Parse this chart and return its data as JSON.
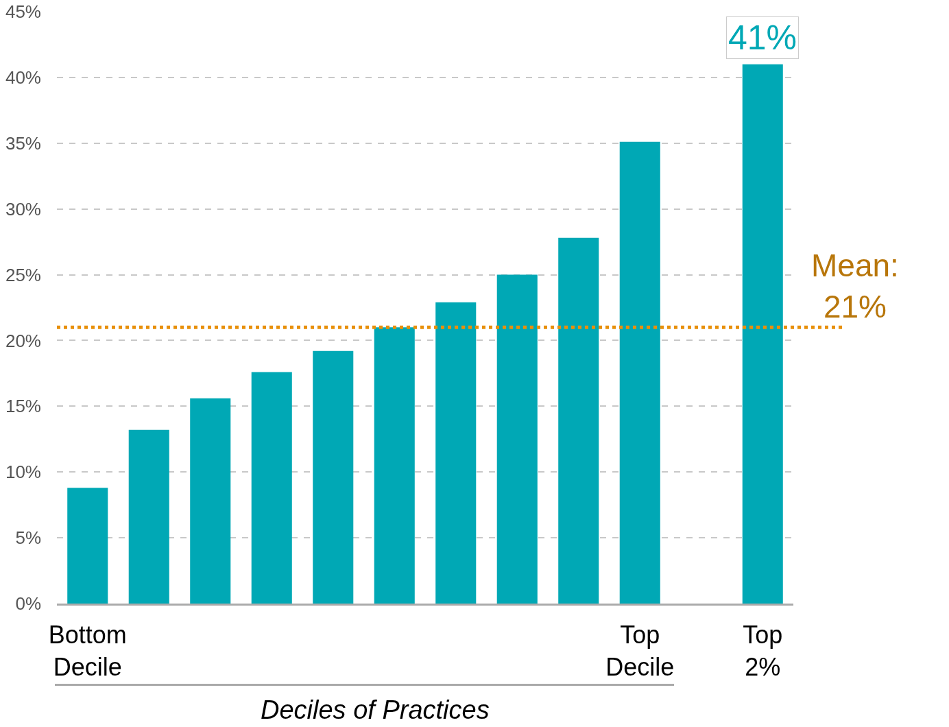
{
  "chart_data": {
    "type": "bar",
    "xlabel": "Deciles of Practices",
    "categories": [
      "Bottom Decile",
      null,
      null,
      null,
      null,
      null,
      null,
      null,
      null,
      "Top Decile",
      null,
      "Top 2%"
    ],
    "values": [
      8.8,
      13.2,
      15.6,
      17.6,
      19.2,
      21.0,
      22.9,
      25.0,
      27.8,
      35.1,
      null,
      41
    ],
    "value_labels": [
      null,
      null,
      null,
      null,
      null,
      null,
      null,
      null,
      null,
      null,
      null,
      "41%"
    ],
    "color": "#00a8b5",
    "ylim": [
      0,
      45
    ],
    "yticks": [
      {
        "value": 0,
        "label": "0%"
      },
      {
        "value": 5,
        "label": "5%"
      },
      {
        "value": 10,
        "label": "10%"
      },
      {
        "value": 15,
        "label": "15%"
      },
      {
        "value": 20,
        "label": "20%"
      },
      {
        "value": 25,
        "label": "25%"
      },
      {
        "value": 30,
        "label": "30%"
      },
      {
        "value": 35,
        "label": "35%"
      },
      {
        "value": 40,
        "label": "40%"
      },
      {
        "value": 45,
        "label": "45%"
      }
    ],
    "ref_lines": [
      {
        "axis": "y",
        "value": 21,
        "label": "Mean:\n21%",
        "color": "#e8900a",
        "line_style": "dotted"
      }
    ],
    "grid": "y",
    "legend": false
  }
}
